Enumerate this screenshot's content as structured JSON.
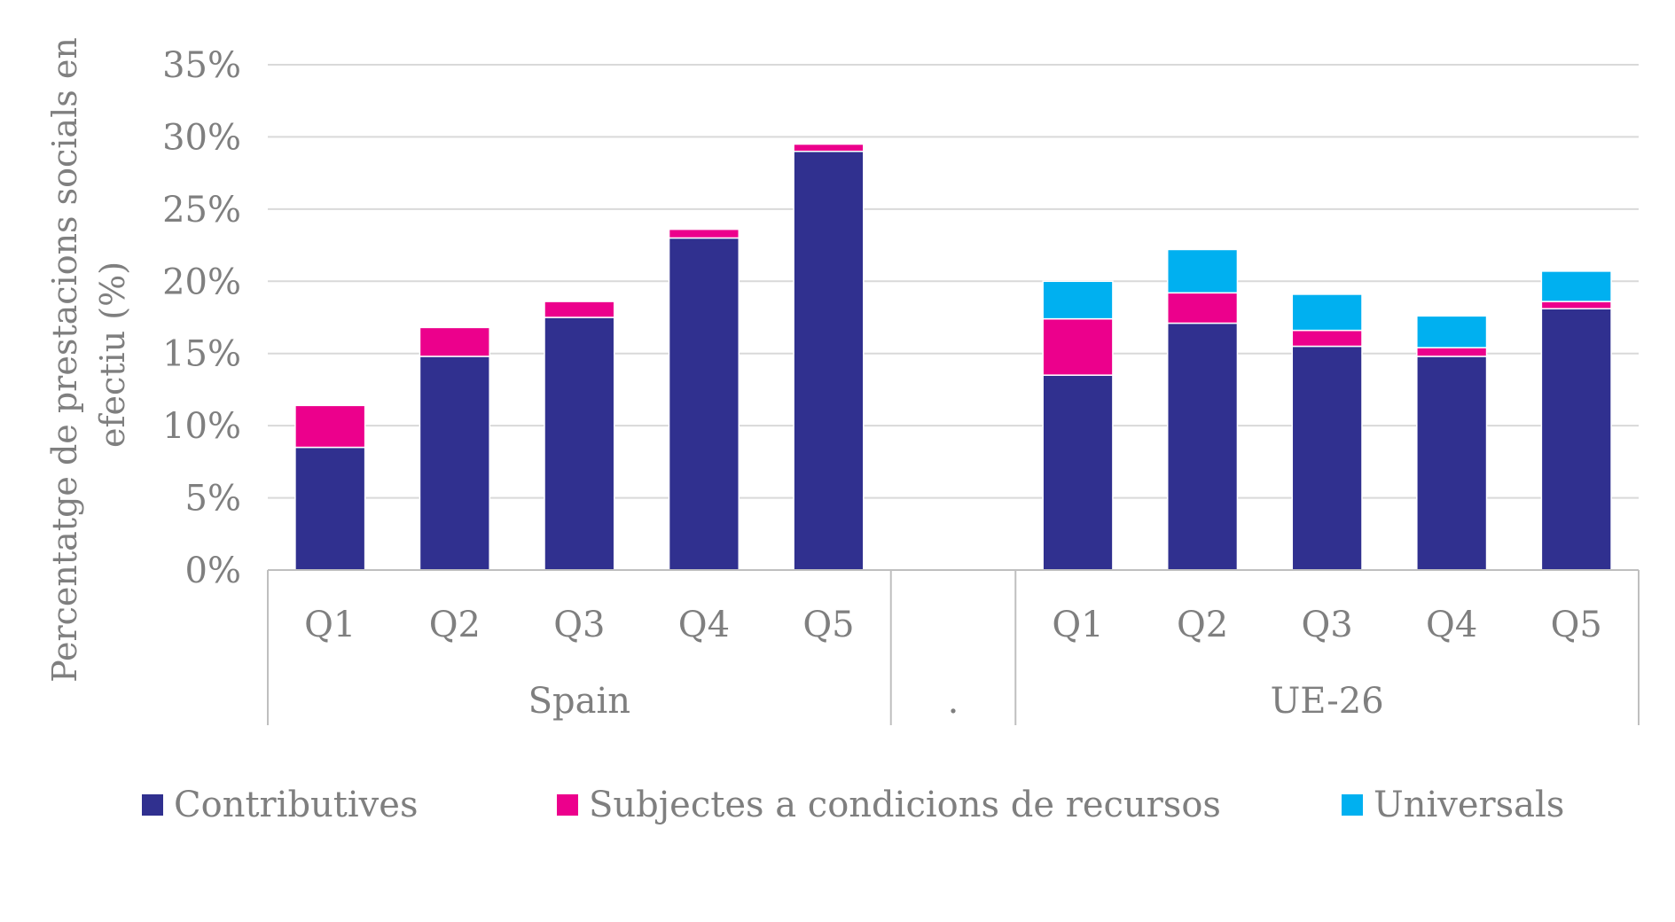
{
  "chart_data": {
    "type": "bar",
    "stacked": true,
    "ylabel": [
      "Percentatge de prestacions socials en",
      "efectiu (%)"
    ],
    "ylim": [
      0,
      35
    ],
    "yticks": [
      "0%",
      "5%",
      "10%",
      "15%",
      "20%",
      "25%",
      "30%",
      "35%"
    ],
    "grid": true,
    "legend_position": "bottom",
    "groups": [
      {
        "label": "Spain",
        "categories": [
          "Q1",
          "Q2",
          "Q3",
          "Q4",
          "Q5"
        ]
      },
      {
        "label": ".",
        "categories": []
      },
      {
        "label": "UE-26",
        "categories": [
          "Q1",
          "Q2",
          "Q3",
          "Q4",
          "Q5"
        ]
      }
    ],
    "series": [
      {
        "name": "Contributives",
        "color": "#30308f",
        "values": [
          8.5,
          14.8,
          17.5,
          23.0,
          29.0,
          13.5,
          17.1,
          15.5,
          14.8,
          18.1
        ]
      },
      {
        "name": "Subjectes a condicions de recursos",
        "color": "#ec008c",
        "values": [
          2.9,
          2.0,
          1.1,
          0.6,
          0.5,
          3.9,
          2.1,
          1.1,
          0.6,
          0.5
        ]
      },
      {
        "name": "Universals",
        "color": "#00b0f0",
        "values": [
          0,
          0,
          0,
          0,
          0,
          2.6,
          3.0,
          2.5,
          2.2,
          2.1
        ]
      }
    ]
  }
}
